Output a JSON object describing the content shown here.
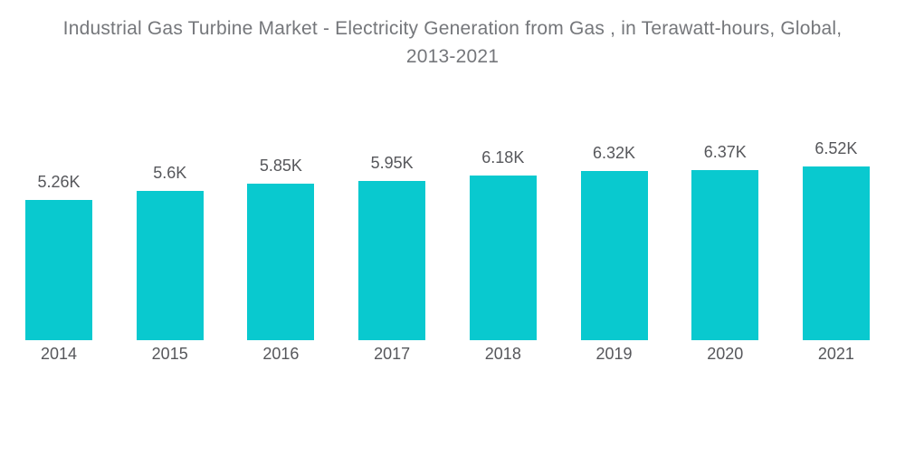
{
  "title": {
    "line1": "Industrial Gas Turbine Market - Electricity Generation from Gas , in Terawatt-hours, Global,",
    "line2": "2013-2021"
  },
  "colors": {
    "bar": "#09c9cf",
    "title_text": "#75777b",
    "label_text": "#56575b",
    "background": "#ffffff"
  },
  "chart_data": {
    "type": "bar",
    "title": "Industrial Gas Turbine Market - Electricity Generation from Gas , in Terawatt-hours, Global, 2013-2021",
    "categories": [
      "2014",
      "2015",
      "2016",
      "2017",
      "2018",
      "2019",
      "2020",
      "2021"
    ],
    "values": [
      5260,
      5600,
      5850,
      5950,
      6180,
      6320,
      6370,
      6520
    ],
    "value_labels": [
      "5.26K",
      "5.6K",
      "5.85K",
      "5.95K",
      "6.18K",
      "6.32K",
      "6.37K",
      "6.52K"
    ],
    "unit": "Terawatt-hours",
    "xlabel": "",
    "ylabel": "",
    "ylim": [
      0,
      6520
    ],
    "grid": false,
    "axes_visible": false,
    "legend": null,
    "bar_color": "#09c9cf"
  }
}
